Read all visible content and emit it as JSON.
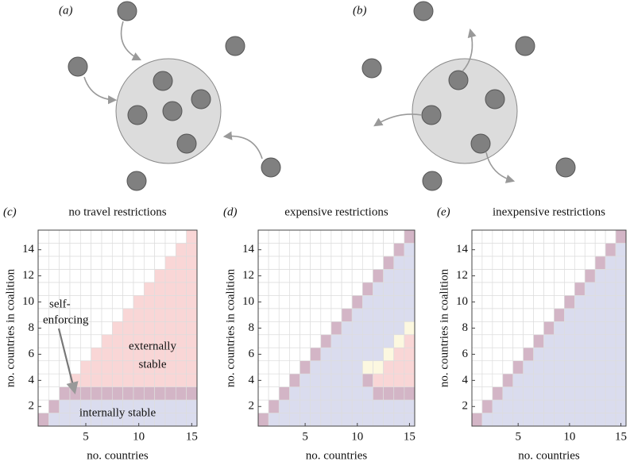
{
  "panels_top": [
    {
      "label": "(a)"
    },
    {
      "label": "(b)"
    }
  ],
  "grids": [
    {
      "label": "(c)",
      "title": "no travel restrictions",
      "xlabel": "no. countries",
      "ylabel": "no. countries in coalition",
      "xticks": [
        5,
        10,
        15
      ],
      "yticks": [
        2,
        4,
        6,
        8,
        10,
        12,
        14
      ],
      "annotations": [
        "self-",
        "enforcing",
        "externally",
        "stable",
        "internally stable"
      ],
      "cells": [
        "mbbbbbbbbbbbbbb",
        ".mbbbbbbbbbbbbb",
        "..mmmmmmmmmmmmm",
        "...pppppppppppp",
        "....ppppppppppp",
        ".....pppppppppp",
        "......ppppppppp",
        ".......pppppppp",
        "........ppppppp",
        ".........pppppp",
        "..........ppppp",
        "...........pppp",
        "............ppp",
        ".............pp",
        "..............p"
      ]
    },
    {
      "label": "(d)",
      "title": "expensive restrictions",
      "xlabel": "no. countries",
      "ylabel": "no. countries in coalition",
      "xticks": [
        5,
        10,
        15
      ],
      "yticks": [
        2,
        4,
        6,
        8,
        10,
        12,
        14
      ],
      "cells": [
        "mbbbbbbbbbbbbbb",
        ".mbbbbbbbbbbbbb",
        "..mbbbbbbbbmmmm",
        "...mbbbbbbmpppp",
        "....mbbbbbyyppp",
        ".....mbbbbbbypp",
        "......mbbbbbbyp",
        ".......mbbbbbby",
        "........mbbbbbb",
        ".........mbbbbb",
        "..........mbbbb",
        "...........mbbb",
        "............mbb",
        ".............mb",
        "..............m"
      ]
    },
    {
      "label": "(e)",
      "title": "inexpensive restrictions",
      "xlabel": "no. countries",
      "ylabel": "no. countries in coalition",
      "xticks": [
        5,
        10,
        15
      ],
      "yticks": [
        2,
        4,
        6,
        8,
        10,
        12,
        14
      ],
      "cells": [
        "mbbbbbbbbbbbbbb",
        ".mbbbbbbbbbbbbb",
        "..mbbbbbbbbbbbb",
        "...mbbbbbbbbbbb",
        "....mbbbbbbbbbb",
        ".....mbbbbbbbbb",
        "......mbbbbbbbb",
        ".......mbbbbbbb",
        "........mbbbbbb",
        ".........mbbbbb",
        "..........mbbbb",
        "...........mbbb",
        "............mbb",
        ".............mb",
        "..............m"
      ]
    }
  ],
  "colors": {
    "b": "#dadcee",
    "p": "#f9d6d6",
    "m": "#d3b5c6",
    "y": "#fcf8e0"
  }
}
